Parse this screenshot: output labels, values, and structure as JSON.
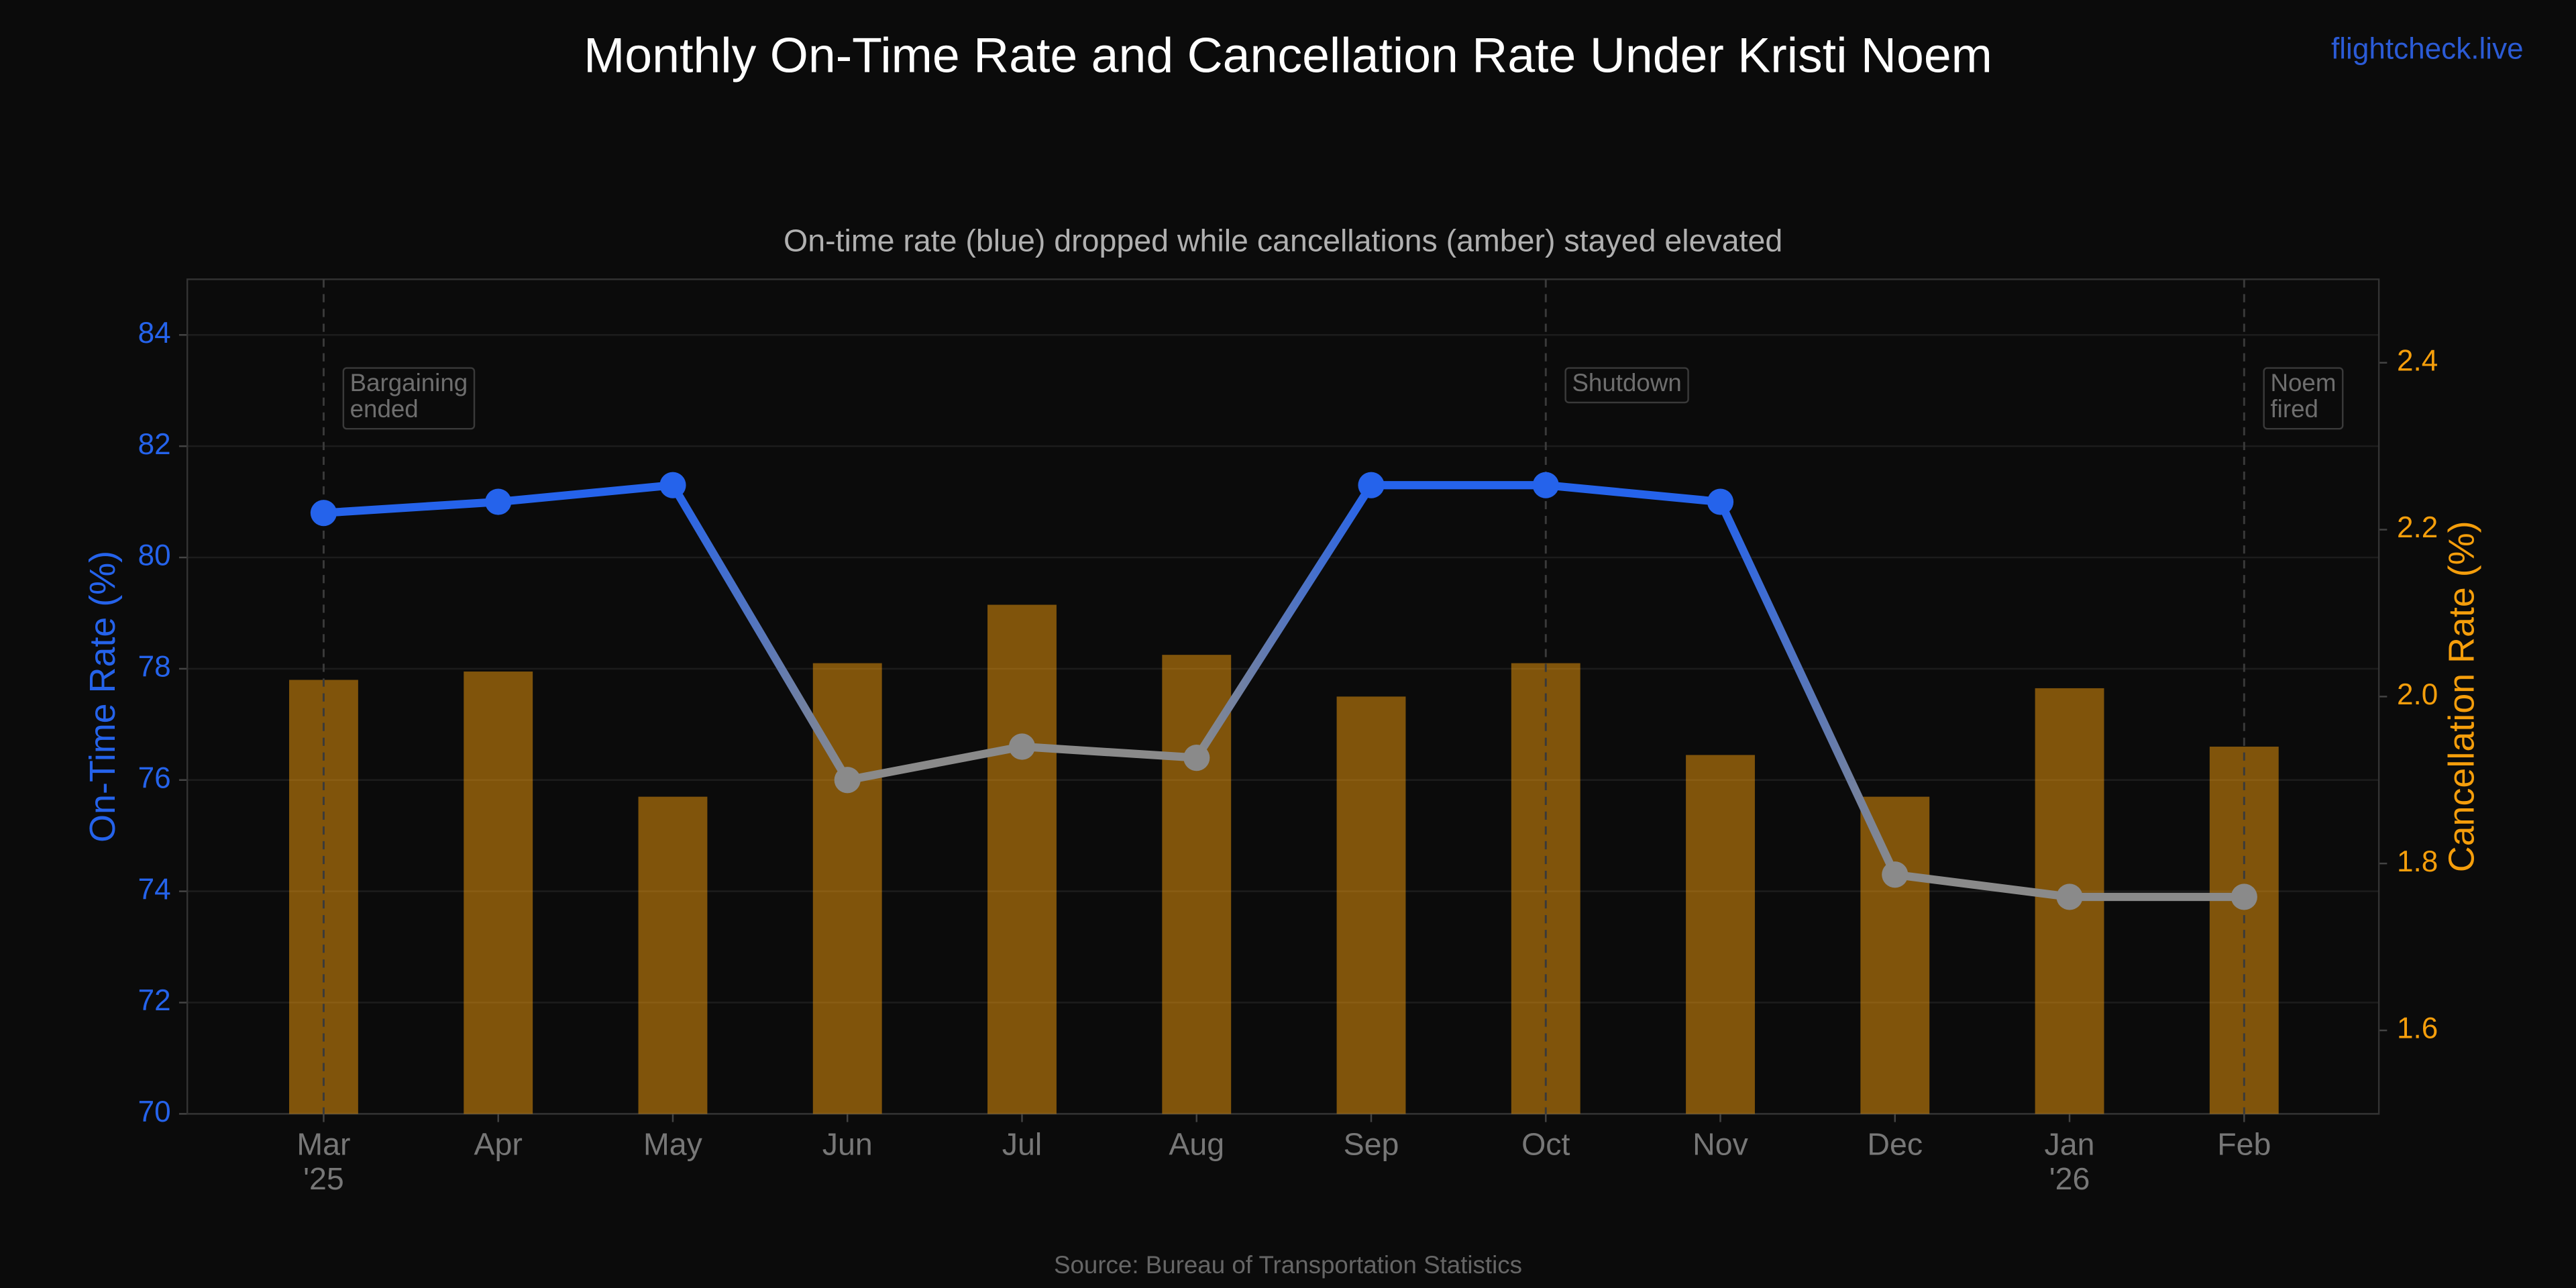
{
  "chart_data": {
    "type": "bar-line",
    "title": "Monthly On-Time Rate and Cancellation Rate Under Kristi Noem",
    "subtitle": "On-time rate (blue) dropped while cancellations (amber) stayed elevated",
    "watermark": "flightcheck.live",
    "source": "Source: Bureau of Transportation Statistics",
    "ylabel": "On-Time Rate (%)",
    "y2label": "Cancellation Rate (%)",
    "categories": [
      "Mar",
      "Apr",
      "May",
      "Jun",
      "Jul",
      "Aug",
      "Sep",
      "Oct",
      "Nov",
      "Dec",
      "Jan",
      "Feb"
    ],
    "year_labels": [
      "'25",
      null,
      null,
      null,
      null,
      null,
      null,
      null,
      null,
      null,
      "'26",
      null
    ],
    "series": [
      {
        "name": "Cancellation Rate",
        "type": "bar",
        "axis": "y2",
        "color": "#f59e0b",
        "values": [
          2.02,
          2.03,
          1.88,
          2.04,
          2.11,
          2.05,
          2.0,
          2.04,
          1.93,
          1.88,
          2.01,
          1.94
        ]
      },
      {
        "name": "On-Time Rate",
        "type": "line",
        "axis": "y",
        "color": "#2563eb",
        "values": [
          80.8,
          81.0,
          81.3,
          76.0,
          76.6,
          76.4,
          81.3,
          81.3,
          81.0,
          74.3,
          73.9,
          73.9
        ],
        "point_colors": [
          "#2563eb",
          "#2563eb",
          "#2563eb",
          "#8a8a8a",
          "#8a8a8a",
          "#8a8a8a",
          "#2563eb",
          "#2563eb",
          "#2563eb",
          "#8a8a8a",
          "#8a8a8a",
          "#8a8a8a"
        ]
      }
    ],
    "ylim": [
      70,
      85
    ],
    "yticks": [
      70,
      72,
      74,
      76,
      78,
      80,
      82,
      84
    ],
    "y2lim": [
      1.5,
      2.5
    ],
    "y2ticks": [
      1.6,
      1.8,
      {
        "value": 2,
        "label": "2.0"
      },
      2.2,
      2.4
    ],
    "grid": true,
    "annotations": [
      {
        "x": "Mar",
        "lines": [
          "Bargaining",
          "ended"
        ]
      },
      {
        "x": "Oct",
        "lines": [
          "Shutdown"
        ]
      },
      {
        "x": "Feb",
        "lines": [
          "Noem",
          "fired"
        ]
      }
    ]
  }
}
